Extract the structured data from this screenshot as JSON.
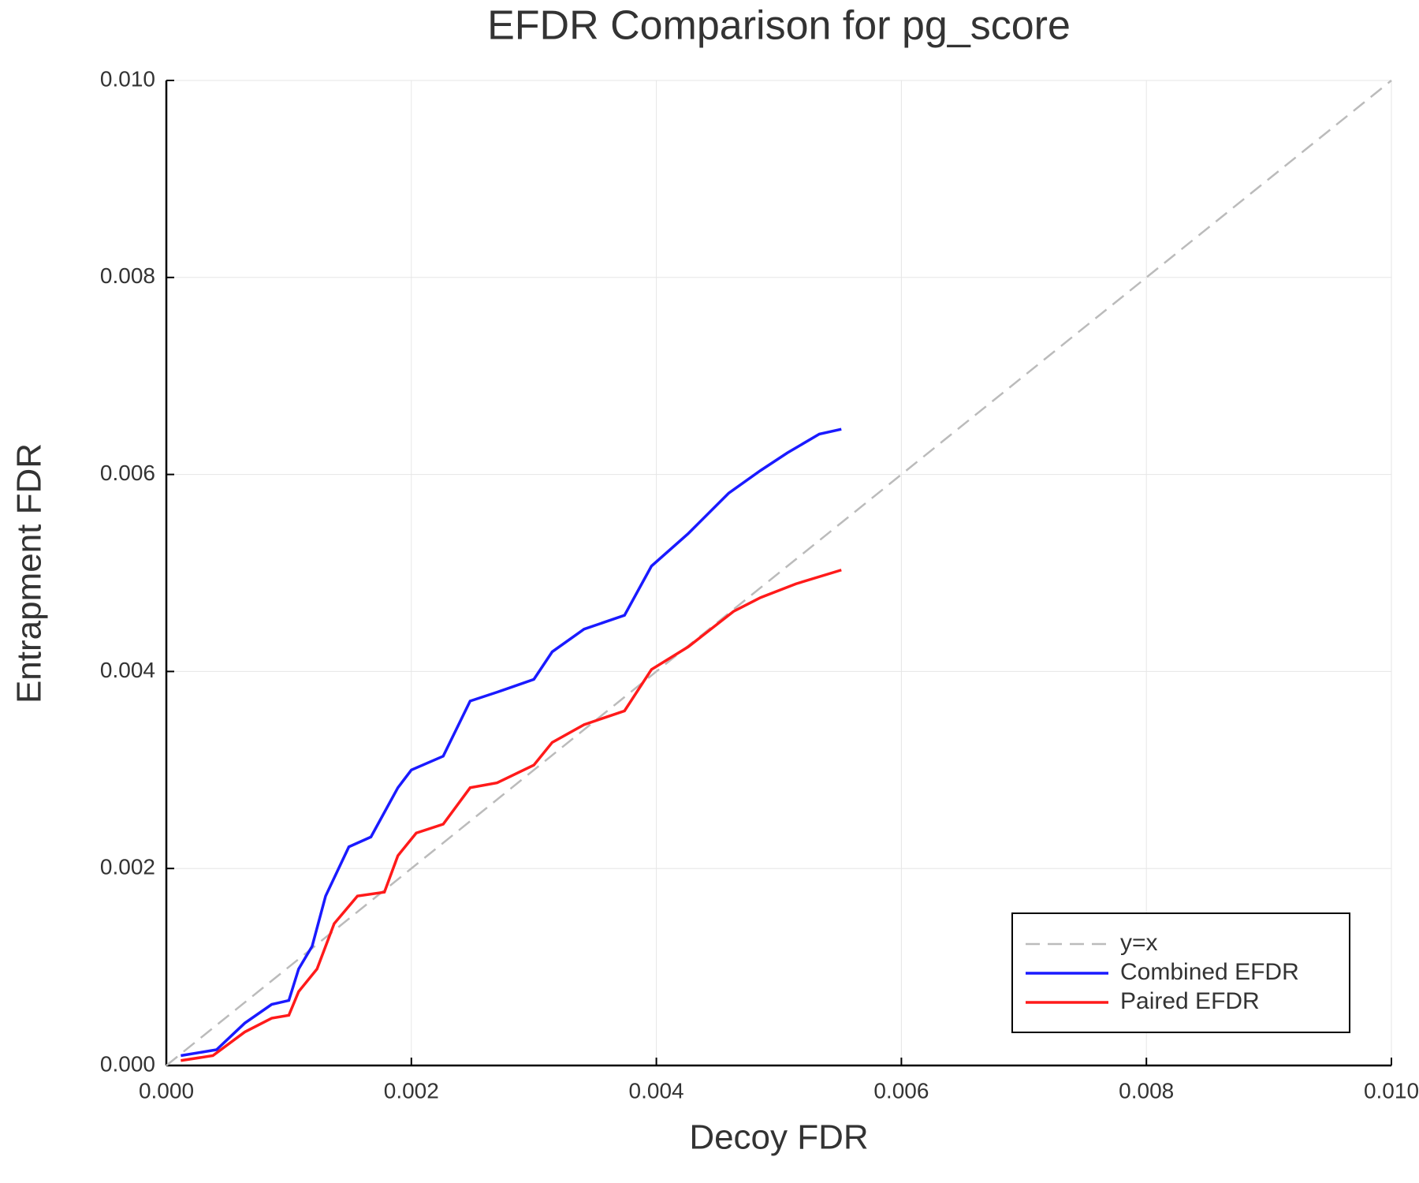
{
  "chart_data": {
    "type": "line",
    "title": "EFDR Comparison for pg_score",
    "x_label": "Decoy FDR",
    "y_label": "Entrapment FDR",
    "xlim": [
      0,
      0.01
    ],
    "ylim": [
      0,
      0.01
    ],
    "xticks": [
      {
        "value": 0,
        "label": "0.000"
      },
      {
        "value": 0.002,
        "label": "0.002"
      },
      {
        "value": 0.004,
        "label": "0.004"
      },
      {
        "value": 0.006,
        "label": "0.006"
      },
      {
        "value": 0.008,
        "label": "0.008"
      },
      {
        "value": 0.01,
        "label": "0.010"
      }
    ],
    "yticks": [
      {
        "value": 0,
        "label": "0.000"
      },
      {
        "value": 0.002,
        "label": "0.002"
      },
      {
        "value": 0.004,
        "label": "0.004"
      },
      {
        "value": 0.006,
        "label": "0.006"
      },
      {
        "value": 0.008,
        "label": "0.008"
      },
      {
        "value": 0.01,
        "label": "0.010"
      }
    ],
    "grid": true,
    "legend": "lower right",
    "series": [
      {
        "name": "y=x",
        "color": "#bbbbbb",
        "dash": true,
        "x": [
          0,
          0.01
        ],
        "values": [
          0,
          0.01
        ]
      },
      {
        "name": "Combined EFDR",
        "color": "#1a1aff",
        "x": [
          0.000118,
          0.00041,
          0.00064,
          0.00086,
          0.001,
          0.00108,
          0.00119,
          0.0013,
          0.00149,
          0.00167,
          0.00189,
          0.002,
          0.00226,
          0.00248,
          0.0027,
          0.003,
          0.00315,
          0.00341,
          0.00374,
          0.00396,
          0.00426,
          0.00459,
          0.00485,
          0.00507,
          0.00533,
          0.00551
        ],
        "values": [
          0.0001,
          0.00016,
          0.00043,
          0.00062,
          0.00066,
          0.00098,
          0.00121,
          0.00172,
          0.00222,
          0.00232,
          0.00282,
          0.003,
          0.00314,
          0.0037,
          0.00379,
          0.00392,
          0.0042,
          0.00443,
          0.00457,
          0.00507,
          0.0054,
          0.00581,
          0.00604,
          0.00622,
          0.00641,
          0.00646
        ]
      },
      {
        "name": "Paired EFDR",
        "color": "#ff1a1a",
        "x": [
          0.000118,
          0.00038,
          0.00064,
          0.00086,
          0.001,
          0.00108,
          0.00123,
          0.00137,
          0.00156,
          0.00178,
          0.00189,
          0.00204,
          0.00226,
          0.00248,
          0.0027,
          0.003,
          0.00315,
          0.00341,
          0.00374,
          0.00396,
          0.00426,
          0.00463,
          0.00485,
          0.00514,
          0.00551
        ],
        "values": [
          5e-05,
          0.0001,
          0.00034,
          0.00048,
          0.00051,
          0.00075,
          0.00098,
          0.00144,
          0.00172,
          0.00176,
          0.00213,
          0.00236,
          0.00245,
          0.00282,
          0.00287,
          0.00305,
          0.00328,
          0.00346,
          0.0036,
          0.00402,
          0.00425,
          0.00461,
          0.00475,
          0.00489,
          0.00503
        ]
      }
    ]
  }
}
